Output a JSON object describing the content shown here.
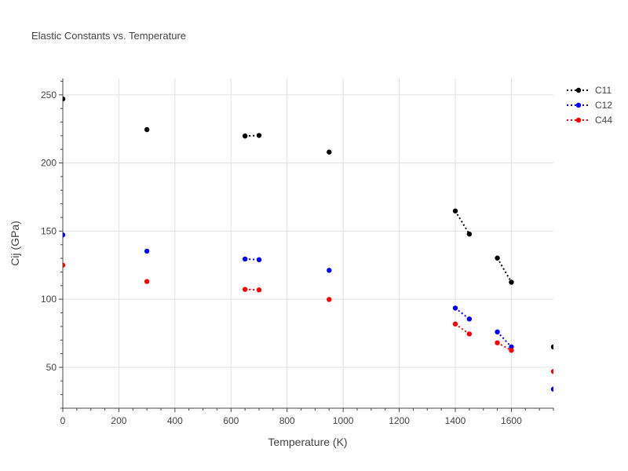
{
  "chart_data": {
    "type": "scatter",
    "title": "Elastic Constants vs. Temperature",
    "xlabel": "Temperature (K)",
    "ylabel": "Cij (GPa)",
    "xlim": [
      0,
      1750
    ],
    "ylim": [
      20,
      262
    ],
    "xticks": [
      0,
      200,
      400,
      600,
      800,
      1000,
      1200,
      1400,
      1600
    ],
    "yticks": [
      50,
      100,
      150,
      200,
      250
    ],
    "grid": true,
    "legend": "top-right",
    "series": [
      {
        "name": "C11",
        "color": "#000000",
        "points": [
          [
            0,
            247
          ],
          [
            300,
            224.5
          ],
          [
            650,
            219.8
          ],
          [
            700,
            220.2
          ],
          [
            950,
            208
          ],
          [
            1400,
            164.8
          ],
          [
            1450,
            147.8
          ],
          [
            1550,
            130.2
          ],
          [
            1600,
            112.5
          ],
          [
            1750,
            65
          ]
        ],
        "segments": [
          [
            2,
            3
          ],
          [
            5,
            6
          ],
          [
            7,
            8
          ]
        ]
      },
      {
        "name": "C12",
        "color": "#0000ff",
        "points": [
          [
            0,
            147.2
          ],
          [
            300,
            135.3
          ],
          [
            650,
            129.5
          ],
          [
            700,
            129
          ],
          [
            950,
            121.2
          ],
          [
            1400,
            93.5
          ],
          [
            1450,
            85.5
          ],
          [
            1550,
            76
          ],
          [
            1600,
            65
          ],
          [
            1750,
            34
          ]
        ],
        "segments": [
          [
            2,
            3
          ],
          [
            5,
            6
          ],
          [
            7,
            8
          ]
        ]
      },
      {
        "name": "C44",
        "color": "#ff0000",
        "points": [
          [
            0,
            125
          ],
          [
            300,
            113
          ],
          [
            650,
            107.2
          ],
          [
            700,
            106.8
          ],
          [
            950,
            99.8
          ],
          [
            1400,
            81.8
          ],
          [
            1450,
            74.5
          ],
          [
            1550,
            68
          ],
          [
            1600,
            62.5
          ],
          [
            1750,
            47
          ]
        ],
        "segments": [
          [
            2,
            3
          ],
          [
            5,
            6
          ],
          [
            7,
            8
          ]
        ]
      }
    ]
  }
}
